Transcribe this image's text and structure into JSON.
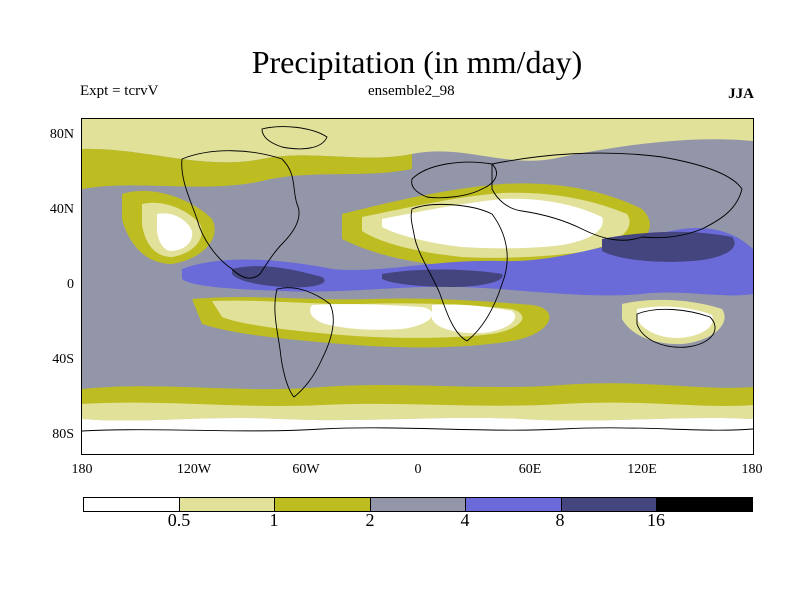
{
  "title": "Precipitation (in mm/day)",
  "experiment": "Expt = tcrvV",
  "ensemble": "ensemble2_98",
  "season": "JJA",
  "y_ticks": [
    "80N",
    "40N",
    "0",
    "40S",
    "80S"
  ],
  "x_ticks": [
    "180",
    "120W",
    "60W",
    "0",
    "60E",
    "120E",
    "180"
  ],
  "colorbar_labels": [
    "0.5",
    "1",
    "2",
    "4",
    "8",
    "16"
  ],
  "colors": {
    "c0": "#ffffff",
    "c1": "#e2e19a",
    "c2": "#bdbd22",
    "c3": "#9396a8",
    "c4": "#6a6ad8",
    "c5": "#44447e",
    "c6": "#000000"
  }
}
